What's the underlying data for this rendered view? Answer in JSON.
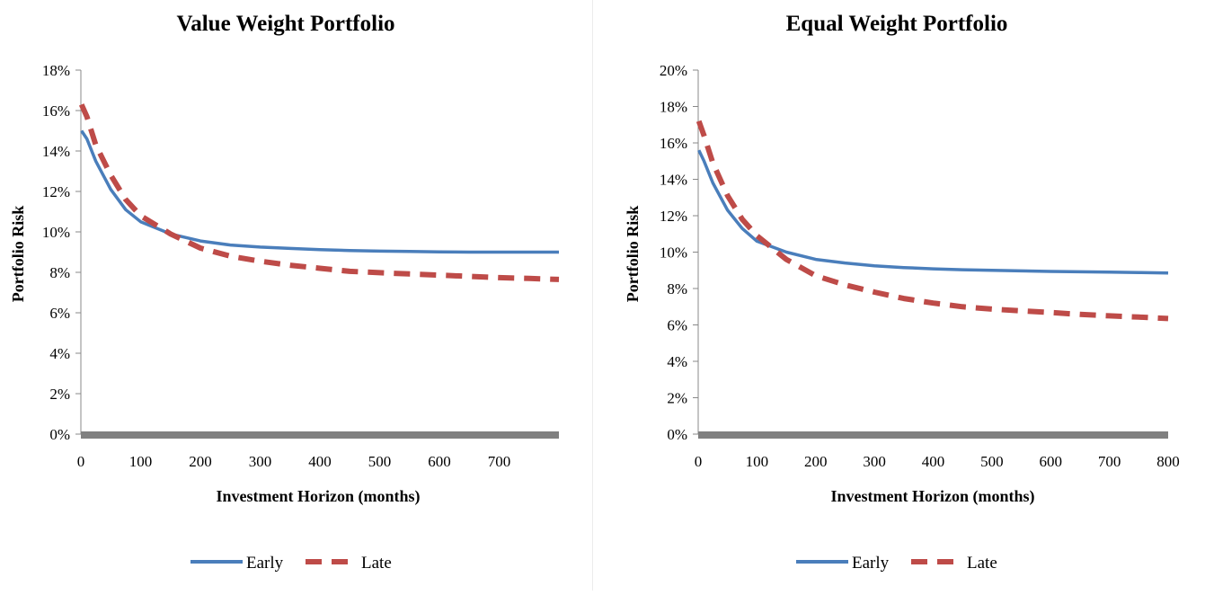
{
  "colors": {
    "early": "#4a7ebb",
    "late": "#be4b48",
    "baseline": "#808080"
  },
  "legend": {
    "early": "Early",
    "late": "Late"
  },
  "chart_data": [
    {
      "type": "line",
      "title": "Value Weight Portfolio",
      "xlabel": "Investment Horizon (months)",
      "ylabel": "Portfolio Risk",
      "xlim": [
        0,
        800
      ],
      "ylim": [
        0,
        18
      ],
      "x_ticks": [
        "0",
        "100",
        "200",
        "300",
        "400",
        "500",
        "600",
        "700"
      ],
      "y_ticks": [
        "0%",
        "2%",
        "4%",
        "6%",
        "8%",
        "10%",
        "12%",
        "14%",
        "16%",
        "18%"
      ],
      "grid": false,
      "legend_position": "bottom",
      "series": [
        {
          "name": "Early",
          "style": "solid",
          "x": [
            1,
            10,
            25,
            50,
            75,
            100,
            150,
            200,
            250,
            300,
            350,
            400,
            450,
            500,
            550,
            600,
            650,
            700,
            750,
            800
          ],
          "y": [
            15.0,
            14.6,
            13.5,
            12.1,
            11.1,
            10.5,
            9.9,
            9.55,
            9.35,
            9.25,
            9.18,
            9.12,
            9.08,
            9.05,
            9.03,
            9.01,
            9.0,
            9.0,
            9.0,
            9.0
          ]
        },
        {
          "name": "Late",
          "style": "dashed",
          "x": [
            1,
            10,
            25,
            50,
            75,
            100,
            150,
            200,
            250,
            300,
            350,
            400,
            450,
            500,
            550,
            600,
            650,
            700,
            750,
            800
          ],
          "y": [
            16.3,
            15.7,
            14.3,
            12.8,
            11.6,
            10.8,
            9.9,
            9.2,
            8.8,
            8.55,
            8.35,
            8.2,
            8.05,
            7.98,
            7.92,
            7.86,
            7.8,
            7.74,
            7.7,
            7.65
          ]
        }
      ]
    },
    {
      "type": "line",
      "title": "Equal Weight Portfolio",
      "xlabel": "Investment Horizon (months)",
      "ylabel": "Portfolio Risk",
      "xlim": [
        0,
        800
      ],
      "ylim": [
        0,
        20
      ],
      "x_ticks": [
        "0",
        "100",
        "200",
        "300",
        "400",
        "500",
        "600",
        "700",
        "800"
      ],
      "y_ticks": [
        "0%",
        "2%",
        "4%",
        "6%",
        "8%",
        "10%",
        "12%",
        "14%",
        "16%",
        "18%",
        "20%"
      ],
      "grid": false,
      "legend_position": "bottom",
      "series": [
        {
          "name": "Early",
          "style": "solid",
          "x": [
            1,
            10,
            25,
            50,
            75,
            100,
            150,
            200,
            250,
            300,
            350,
            400,
            450,
            500,
            550,
            600,
            650,
            700,
            750,
            800
          ],
          "y": [
            15.6,
            15.0,
            13.8,
            12.3,
            11.3,
            10.6,
            10.0,
            9.6,
            9.4,
            9.25,
            9.15,
            9.08,
            9.03,
            9.0,
            8.97,
            8.94,
            8.92,
            8.9,
            8.88,
            8.85
          ]
        },
        {
          "name": "Late",
          "style": "dashed",
          "x": [
            1,
            10,
            25,
            50,
            75,
            100,
            150,
            200,
            250,
            300,
            350,
            400,
            450,
            500,
            550,
            600,
            650,
            700,
            750,
            800
          ],
          "y": [
            17.2,
            16.4,
            14.9,
            13.1,
            11.8,
            10.9,
            9.6,
            8.7,
            8.2,
            7.8,
            7.45,
            7.2,
            7.0,
            6.87,
            6.77,
            6.68,
            6.58,
            6.5,
            6.43,
            6.35
          ]
        }
      ]
    }
  ]
}
